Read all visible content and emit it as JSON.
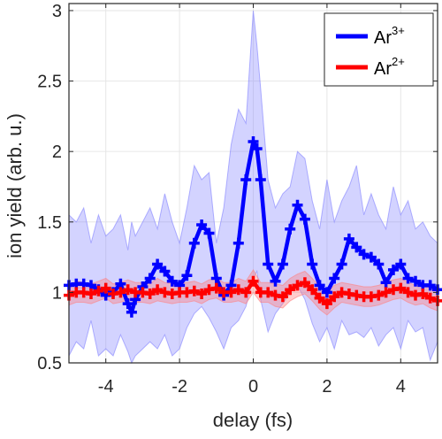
{
  "chart_data": {
    "type": "line",
    "xlabel": "delay (fs)",
    "ylabel": "ion yield (arb. u.)",
    "xlim": [
      -5,
      5
    ],
    "ylim": [
      0.5,
      3.05
    ],
    "xticks": [
      -4,
      -2,
      0,
      2,
      4
    ],
    "xtick_labels": [
      "-4",
      "-2",
      "0",
      "2",
      "4"
    ],
    "yticks": [
      0.5,
      1,
      1.5,
      2,
      2.5,
      3
    ],
    "ytick_labels": [
      "0.5",
      "1",
      "1.5",
      "2",
      "2.5",
      "3"
    ],
    "grid": true,
    "legend_position": "top-right",
    "colors": {
      "ar3": "#0000ff",
      "ar3_band": "#8080ff",
      "ar2": "#ff0000",
      "ar2_band": "#ff8080",
      "axis": "#262626",
      "grid": "#e6e6e6"
    },
    "series": [
      {
        "name": "Ar",
        "superscript": "3+",
        "marker": "plus",
        "x": [
          -5.0,
          -4.8,
          -4.6,
          -4.4,
          -4.2,
          -4.0,
          -3.8,
          -3.6,
          -3.4,
          -3.3,
          -3.2,
          -3.0,
          -2.8,
          -2.6,
          -2.4,
          -2.2,
          -2.0,
          -1.8,
          -1.6,
          -1.4,
          -1.2,
          -1.0,
          -0.8,
          -0.6,
          -0.4,
          -0.2,
          0.0,
          0.1,
          0.2,
          0.4,
          0.6,
          0.8,
          1.0,
          1.2,
          1.4,
          1.6,
          1.8,
          2.0,
          2.2,
          2.4,
          2.6,
          2.8,
          3.0,
          3.2,
          3.4,
          3.6,
          3.8,
          4.0,
          4.2,
          4.4,
          4.6,
          4.8,
          5.0
        ],
        "values": [
          1.05,
          1.06,
          1.06,
          1.05,
          1.02,
          0.98,
          1.0,
          1.06,
          0.92,
          0.86,
          0.95,
          1.04,
          1.1,
          1.2,
          1.15,
          1.08,
          1.05,
          1.12,
          1.35,
          1.48,
          1.42,
          1.1,
          0.98,
          1.05,
          1.35,
          1.8,
          2.07,
          2.02,
          1.8,
          1.2,
          1.08,
          1.2,
          1.45,
          1.62,
          1.52,
          1.2,
          1.05,
          1.0,
          1.1,
          1.2,
          1.38,
          1.32,
          1.27,
          1.25,
          1.2,
          1.07,
          1.16,
          1.2,
          1.1,
          1.08,
          1.05,
          1.05,
          1.02
        ],
        "band_upper": [
          1.55,
          1.5,
          1.6,
          1.35,
          1.55,
          1.4,
          1.45,
          1.55,
          1.3,
          1.5,
          1.4,
          1.5,
          1.6,
          1.45,
          1.7,
          1.5,
          1.35,
          1.6,
          1.9,
          1.8,
          1.85,
          1.35,
          1.6,
          2.05,
          2.3,
          2.2,
          3.0,
          2.75,
          2.45,
          1.8,
          1.6,
          1.7,
          1.75,
          2.0,
          1.95,
          1.65,
          1.45,
          1.8,
          1.5,
          1.65,
          1.75,
          1.9,
          1.55,
          1.7,
          1.55,
          1.45,
          1.75,
          1.55,
          1.65,
          1.45,
          1.5,
          1.4,
          1.35
        ],
        "band_lower": [
          0.55,
          0.65,
          0.6,
          0.8,
          0.55,
          0.6,
          0.55,
          0.7,
          0.58,
          0.5,
          0.55,
          0.6,
          0.65,
          0.6,
          0.7,
          0.55,
          0.6,
          0.75,
          0.85,
          0.9,
          0.82,
          0.72,
          0.6,
          0.75,
          0.8,
          0.9,
          1.1,
          1.15,
          0.95,
          0.72,
          0.85,
          0.92,
          1.0,
          1.05,
          0.95,
          0.78,
          0.65,
          0.75,
          0.6,
          0.8,
          0.7,
          0.72,
          0.68,
          0.75,
          0.62,
          0.7,
          0.75,
          0.6,
          0.8,
          0.72,
          0.75,
          0.52,
          0.65
        ]
      },
      {
        "name": "Ar",
        "superscript": "2+",
        "marker": "plus",
        "x": [
          -5.0,
          -4.8,
          -4.6,
          -4.4,
          -4.2,
          -4.0,
          -3.8,
          -3.6,
          -3.4,
          -3.2,
          -3.0,
          -2.8,
          -2.6,
          -2.4,
          -2.2,
          -2.0,
          -1.8,
          -1.6,
          -1.4,
          -1.2,
          -1.0,
          -0.8,
          -0.6,
          -0.4,
          -0.2,
          0.0,
          0.2,
          0.4,
          0.6,
          0.8,
          1.0,
          1.2,
          1.4,
          1.6,
          1.8,
          2.0,
          2.2,
          2.4,
          2.6,
          2.8,
          3.0,
          3.2,
          3.4,
          3.6,
          3.8,
          4.0,
          4.2,
          4.4,
          4.6,
          4.8,
          5.0
        ],
        "values": [
          0.98,
          1.0,
          1.0,
          0.99,
          1.01,
          1.03,
          0.99,
          1.0,
          1.02,
          1.0,
          1.0,
          0.99,
          1.02,
          1.0,
          0.99,
          1.0,
          1.0,
          1.01,
          0.99,
          1.02,
          1.03,
          1.0,
          1.0,
          1.02,
          1.0,
          1.08,
          1.0,
          1.0,
          0.98,
          0.97,
          1.02,
          1.05,
          1.07,
          1.02,
          0.96,
          0.92,
          0.97,
          1.0,
          0.99,
          0.98,
          0.97,
          0.97,
          0.98,
          1.0,
          1.02,
          1.03,
          1.0,
          0.98,
          0.99,
          0.96,
          0.94
        ],
        "band_upper": [
          1.05,
          1.08,
          1.07,
          1.06,
          1.08,
          1.1,
          1.06,
          1.07,
          1.09,
          1.07,
          1.07,
          1.06,
          1.1,
          1.07,
          1.06,
          1.07,
          1.07,
          1.08,
          1.06,
          1.09,
          1.1,
          1.07,
          1.07,
          1.1,
          1.08,
          1.16,
          1.07,
          1.07,
          1.06,
          1.05,
          1.1,
          1.13,
          1.15,
          1.1,
          1.04,
          1.0,
          1.05,
          1.07,
          1.06,
          1.05,
          1.04,
          1.04,
          1.05,
          1.07,
          1.09,
          1.1,
          1.07,
          1.05,
          1.06,
          1.03,
          1.01
        ],
        "band_lower": [
          0.91,
          0.93,
          0.93,
          0.92,
          0.94,
          0.96,
          0.92,
          0.93,
          0.95,
          0.93,
          0.93,
          0.92,
          0.94,
          0.93,
          0.92,
          0.93,
          0.93,
          0.94,
          0.92,
          0.95,
          0.96,
          0.93,
          0.93,
          0.94,
          0.92,
          1.0,
          0.93,
          0.93,
          0.9,
          0.89,
          0.94,
          0.97,
          0.99,
          0.94,
          0.88,
          0.84,
          0.89,
          0.93,
          0.92,
          0.91,
          0.9,
          0.9,
          0.91,
          0.93,
          0.95,
          0.96,
          0.93,
          0.91,
          0.92,
          0.89,
          0.87
        ]
      }
    ]
  }
}
